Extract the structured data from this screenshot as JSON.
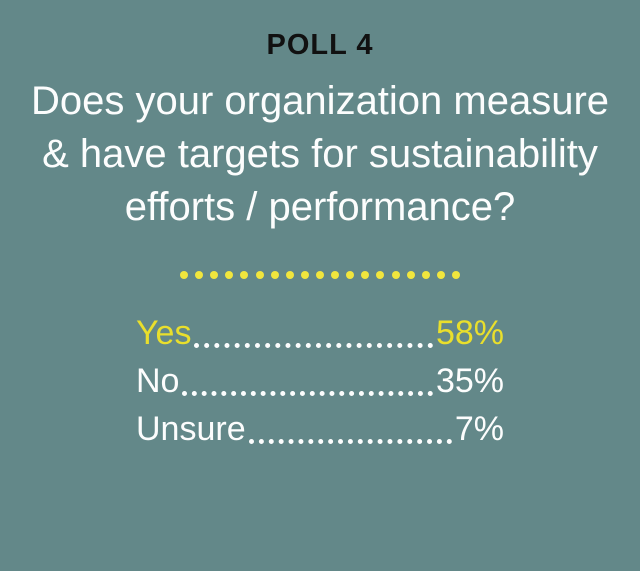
{
  "header": {
    "kicker": "POLL 4"
  },
  "question": {
    "lines": [
      "Does your organization measure",
      "& have targets for sustainability",
      "efforts / performance?"
    ]
  },
  "divider": {
    "dot_count": 19
  },
  "results": {
    "rows": [
      {
        "label": "Yes",
        "value": "58%",
        "highlighted": true
      },
      {
        "label": "No",
        "value": "35%",
        "highlighted": false
      },
      {
        "label": "Unsure",
        "value": "7%",
        "highlighted": false
      }
    ]
  },
  "colors": {
    "background": "#638889",
    "text_white": "#fcfdfd",
    "accent_yellow": "#e9df2c",
    "divider_dot_yellow": "#f1e63e",
    "kicker_black": "#111111"
  },
  "chart_data": {
    "type": "table",
    "title": "Does your organization measure & have targets for sustainability efforts / performance?",
    "subtitle": "POLL 4",
    "categories": [
      "Yes",
      "No",
      "Unsure"
    ],
    "values": [
      58,
      35,
      7
    ],
    "unit": "%",
    "legend": "none",
    "highlighted_category": "Yes"
  }
}
